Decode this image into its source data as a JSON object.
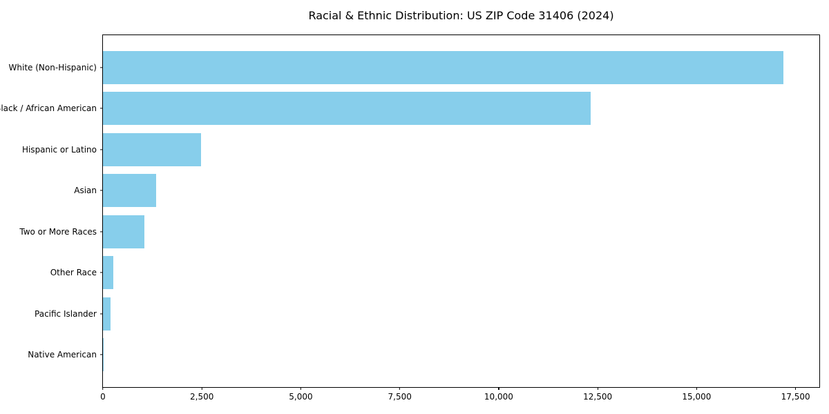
{
  "chart_data": {
    "type": "bar",
    "orientation": "horizontal",
    "title": "Racial & Ethnic Distribution: US ZIP Code 31406 (2024)",
    "categories": [
      "White (Non-Hispanic)",
      "Black / African American",
      "Hispanic or Latino",
      "Asian",
      "Two or More Races",
      "Other Race",
      "Pacific Islander",
      "Native American"
    ],
    "values": [
      17200,
      12320,
      2480,
      1340,
      1050,
      260,
      190,
      25
    ],
    "xlabel": "",
    "ylabel": "",
    "xlim": [
      0,
      18100
    ],
    "x_ticks": [
      0,
      2500,
      5000,
      7500,
      10000,
      12500,
      15000,
      17500
    ],
    "x_tick_labels": [
      "0",
      "2,500",
      "5,000",
      "7,500",
      "10,000",
      "12,500",
      "15,000",
      "17,500"
    ],
    "bar_color": "#87CEEB",
    "axis_color": "#000000",
    "text_color": "#000000",
    "background_color": "#ffffff",
    "grid": false,
    "legend": "none"
  }
}
